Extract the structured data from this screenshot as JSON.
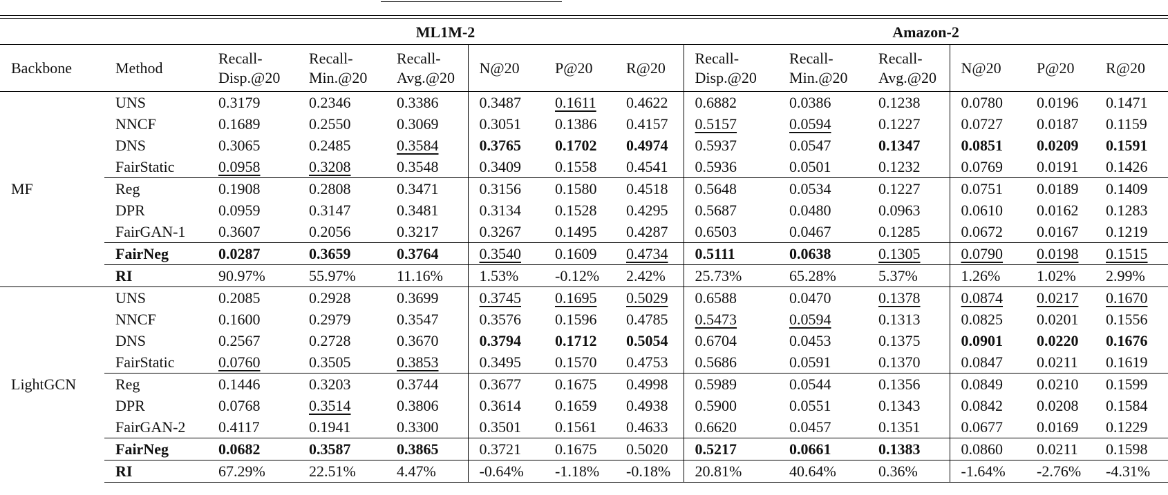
{
  "table": {
    "datasets": [
      "ML1M-2",
      "Amazon-2"
    ],
    "columns": [
      "Backbone",
      "Method",
      "Recall-Disp.@20",
      "Recall-Min.@20",
      "Recall-Avg.@20",
      "N@20",
      "P@20",
      "R@20",
      "Recall-Disp.@20",
      "Recall-Min.@20",
      "Recall-Avg.@20",
      "N@20",
      "P@20",
      "R@20"
    ],
    "groups": [
      {
        "backbone": "MF",
        "rows": [
          {
            "method": "UNS",
            "values": [
              "0.3179",
              "0.2346",
              "0.3386",
              "0.3487",
              "0.1611",
              "0.4622",
              "0.6882",
              "0.0386",
              "0.1238",
              "0.0780",
              "0.0196",
              "0.1471"
            ]
          },
          {
            "method": "NNCF",
            "values": [
              "0.1689",
              "0.2550",
              "0.3069",
              "0.3051",
              "0.1386",
              "0.4157",
              "0.5157",
              "0.0594",
              "0.1227",
              "0.0727",
              "0.0187",
              "0.1159"
            ]
          },
          {
            "method": "DNS",
            "values": [
              "0.3065",
              "0.2485",
              "0.3584",
              "0.3765",
              "0.1702",
              "0.4974",
              "0.5937",
              "0.0547",
              "0.1347",
              "0.0851",
              "0.0209",
              "0.1591"
            ]
          },
          {
            "method": "FairStatic",
            "values": [
              "0.0958",
              "0.3208",
              "0.3548",
              "0.3409",
              "0.1558",
              "0.4541",
              "0.5936",
              "0.0501",
              "0.1232",
              "0.0769",
              "0.0191",
              "0.1426"
            ]
          },
          {
            "method": "Reg",
            "values": [
              "0.1908",
              "0.2808",
              "0.3471",
              "0.3156",
              "0.1580",
              "0.4518",
              "0.5648",
              "0.0534",
              "0.1227",
              "0.0751",
              "0.0189",
              "0.1409"
            ]
          },
          {
            "method": "DPR",
            "values": [
              "0.0959",
              "0.3147",
              "0.3481",
              "0.3134",
              "0.1528",
              "0.4295",
              "0.5687",
              "0.0480",
              "0.0963",
              "0.0610",
              "0.0162",
              "0.1283"
            ]
          },
          {
            "method": "FairGAN-1",
            "values": [
              "0.3607",
              "0.2056",
              "0.3217",
              "0.3267",
              "0.1495",
              "0.4287",
              "0.6503",
              "0.0467",
              "0.1285",
              "0.0672",
              "0.0167",
              "0.1219"
            ]
          },
          {
            "method": "FairNeg",
            "values": [
              "0.0287",
              "0.3659",
              "0.3764",
              "0.3540",
              "0.1609",
              "0.4734",
              "0.5111",
              "0.0638",
              "0.1305",
              "0.0790",
              "0.0198",
              "0.1515"
            ]
          },
          {
            "method": "RI",
            "values": [
              "90.97%",
              "55.97%",
              "11.16%",
              "1.53%",
              "-0.12%",
              "2.42%",
              "25.73%",
              "65.28%",
              "5.37%",
              "1.26%",
              "1.02%",
              "2.99%"
            ]
          }
        ]
      },
      {
        "backbone": "LightGCN",
        "rows": [
          {
            "method": "UNS",
            "values": [
              "0.2085",
              "0.2928",
              "0.3699",
              "0.3745",
              "0.1695",
              "0.5029",
              "0.6588",
              "0.0470",
              "0.1378",
              "0.0874",
              "0.0217",
              "0.1670"
            ]
          },
          {
            "method": "NNCF",
            "values": [
              "0.1600",
              "0.2979",
              "0.3547",
              "0.3576",
              "0.1596",
              "0.4785",
              "0.5473",
              "0.0594",
              "0.1313",
              "0.0825",
              "0.0201",
              "0.1556"
            ]
          },
          {
            "method": "DNS",
            "values": [
              "0.2567",
              "0.2728",
              "0.3670",
              "0.3794",
              "0.1712",
              "0.5054",
              "0.6704",
              "0.0453",
              "0.1375",
              "0.0901",
              "0.0220",
              "0.1676"
            ]
          },
          {
            "method": "FairStatic",
            "values": [
              "0.0760",
              "0.3505",
              "0.3853",
              "0.3495",
              "0.1570",
              "0.4753",
              "0.5686",
              "0.0591",
              "0.1370",
              "0.0847",
              "0.0211",
              "0.1619"
            ]
          },
          {
            "method": "Reg",
            "values": [
              "0.1446",
              "0.3203",
              "0.3744",
              "0.3677",
              "0.1675",
              "0.4998",
              "0.5989",
              "0.0544",
              "0.1356",
              "0.0849",
              "0.0210",
              "0.1599"
            ]
          },
          {
            "method": "DPR",
            "values": [
              "0.0768",
              "0.3514",
              "0.3806",
              "0.3614",
              "0.1659",
              "0.4938",
              "0.5900",
              "0.0551",
              "0.1343",
              "0.0842",
              "0.0208",
              "0.1584"
            ]
          },
          {
            "method": "FairGAN-2",
            "values": [
              "0.4117",
              "0.1941",
              "0.3300",
              "0.3501",
              "0.1561",
              "0.4633",
              "0.6620",
              "0.0457",
              "0.1351",
              "0.0677",
              "0.0169",
              "0.1229"
            ]
          },
          {
            "method": "FairNeg",
            "values": [
              "0.0682",
              "0.3587",
              "0.3865",
              "0.3721",
              "0.1675",
              "0.5020",
              "0.5217",
              "0.0661",
              "0.1383",
              "0.0860",
              "0.0211",
              "0.1598"
            ]
          },
          {
            "method": "RI",
            "values": [
              "67.29%",
              "22.51%",
              "4.47%",
              "-0.64%",
              "-1.18%",
              "-0.18%",
              "20.81%",
              "40.64%",
              "0.36%",
              "-1.64%",
              "-2.76%",
              "-4.31%"
            ]
          }
        ]
      }
    ]
  }
}
